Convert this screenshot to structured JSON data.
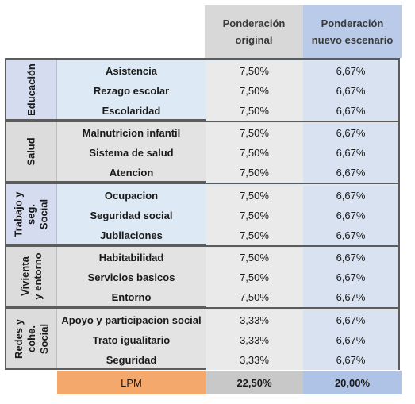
{
  "header": {
    "col_original": "Ponderación original",
    "col_new": "Ponderación nuevo escenario"
  },
  "groups": [
    {
      "name": "Educación",
      "rows": [
        {
          "label": "Asistencia",
          "original": "7,50%",
          "new": "6,67%"
        },
        {
          "label": "Rezago escolar",
          "original": "7,50%",
          "new": "6,67%"
        },
        {
          "label": "Escolaridad",
          "original": "7,50%",
          "new": "6,67%"
        }
      ]
    },
    {
      "name": "Salud",
      "rows": [
        {
          "label": "Malnutricion infantil",
          "original": "7,50%",
          "new": "6,67%"
        },
        {
          "label": "Sistema de salud",
          "original": "7,50%",
          "new": "6,67%"
        },
        {
          "label": "Atencion",
          "original": "7,50%",
          "new": "6,67%"
        }
      ]
    },
    {
      "name": "Trabajo y seg. Social",
      "rows": [
        {
          "label": "Ocupacion",
          "original": "7,50%",
          "new": "6,67%"
        },
        {
          "label": "Seguridad social",
          "original": "7,50%",
          "new": "6,67%"
        },
        {
          "label": "Jubilaciones",
          "original": "7,50%",
          "new": "6,67%"
        }
      ]
    },
    {
      "name": "Vivienta y entorno",
      "rows": [
        {
          "label": "Habitabilidad",
          "original": "7,50%",
          "new": "6,67%"
        },
        {
          "label": "Servicios basicos",
          "original": "7,50%",
          "new": "6,67%"
        },
        {
          "label": "Entorno",
          "original": "7,50%",
          "new": "6,67%"
        }
      ]
    },
    {
      "name": "Redes y cohe. Social",
      "rows": [
        {
          "label": "Apoyo y participacion social",
          "original": "3,33%",
          "new": "6,67%"
        },
        {
          "label": "Trato igualitario",
          "original": "3,33%",
          "new": "6,67%"
        },
        {
          "label": "Seguridad",
          "original": "3,33%",
          "new": "6,67%"
        }
      ]
    }
  ],
  "total": {
    "label": "LPM",
    "original": "22,50%",
    "new": "20,00%"
  }
}
